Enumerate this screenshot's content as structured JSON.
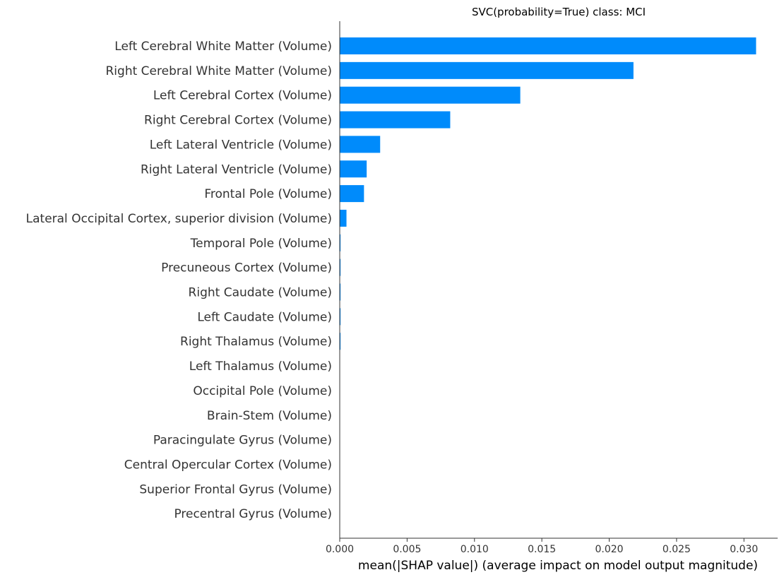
{
  "chart_data": {
    "type": "bar",
    "orientation": "horizontal",
    "title": "SVC(probability=True) class: MCI",
    "xlabel": "mean(|SHAP value|) (average impact on model output magnitude)",
    "ylabel": "",
    "xlim": [
      0.0,
      0.0325
    ],
    "grid": false,
    "bar_color": "#008bfb",
    "x_ticks": [
      0.0,
      0.005,
      0.01,
      0.015,
      0.02,
      0.025,
      0.03
    ],
    "x_tick_labels": [
      "0.000",
      "0.005",
      "0.010",
      "0.015",
      "0.020",
      "0.025",
      "0.030"
    ],
    "categories": [
      "Left Cerebral White Matter (Volume)",
      "Right Cerebral White Matter (Volume)",
      "Left Cerebral Cortex  (Volume)",
      "Right Cerebral Cortex (Volume)",
      "Left Lateral Ventricle (Volume)",
      "Right Lateral Ventricle (Volume)",
      "Frontal Pole (Volume)",
      "Lateral Occipital Cortex, superior division (Volume)",
      "Temporal Pole (Volume)",
      "Precuneous Cortex (Volume)",
      "Right Caudate (Volume)",
      "Left Caudate (Volume)",
      "Right Thalamus (Volume)",
      "Left Thalamus (Volume)",
      "Occipital Pole (Volume)",
      "Brain-Stem (Volume)",
      "Paracingulate Gyrus (Volume)",
      "Central Opercular Cortex (Volume)",
      "Superior Frontal Gyrus (Volume)",
      "Precentral Gyrus (Volume)"
    ],
    "values": [
      0.0309,
      0.0218,
      0.0134,
      0.0082,
      0.003,
      0.002,
      0.0018,
      0.0005,
      6e-05,
      6e-05,
      6e-05,
      6e-05,
      6e-05,
      2e-05,
      1e-05,
      1e-05,
      1e-05,
      1e-05,
      1e-05,
      1e-05
    ]
  }
}
